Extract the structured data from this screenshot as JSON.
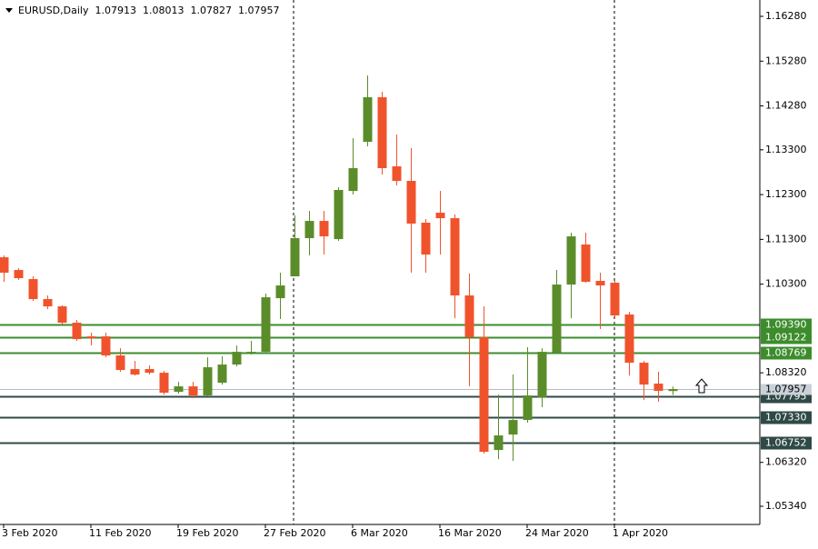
{
  "chart_data": {
    "type": "candlestick",
    "title": "EURUSD,Daily",
    "categories": [
      "3 Feb 2020",
      null,
      null,
      null,
      null,
      null,
      "11 Feb 2020",
      null,
      null,
      null,
      null,
      null,
      "19 Feb 2020",
      null,
      null,
      null,
      null,
      null,
      "27 Feb 2020",
      null,
      null,
      null,
      null,
      null,
      "6 Mar 2020",
      null,
      null,
      null,
      null,
      null,
      "16 Mar 2020",
      null,
      null,
      null,
      null,
      null,
      "24 Mar 2020",
      null,
      null,
      null,
      null,
      null,
      "1 Apr 2020",
      null,
      null,
      null,
      null
    ],
    "series": [
      {
        "up_color": "#5b8c2a",
        "down_color": "#f0532c",
        "open": [
          1.109,
          1.10616,
          1.10413,
          1.09967,
          1.09804,
          1.09439,
          1.09134,
          1.09134,
          1.08708,
          1.08404,
          1.08404,
          1.08322,
          1.07896,
          1.08018,
          1.07815,
          1.08099,
          1.08505,
          1.08769,
          1.08789,
          1.09987,
          1.10474,
          1.11327,
          1.11712,
          1.11306,
          1.12382,
          1.13479,
          1.14473,
          1.1293,
          1.12606,
          1.11672,
          1.11895,
          1.11773,
          1.10048,
          1.09114,
          1.06597,
          1.06942,
          1.07267,
          1.07774,
          1.08769,
          1.10291,
          1.11185,
          1.10373,
          1.10332,
          1.09622,
          1.08546,
          1.08079,
          1.07913
        ],
        "high": [
          1.10941,
          1.10657,
          1.10474,
          1.10048,
          1.09825,
          1.095,
          1.09216,
          1.09216,
          1.0887,
          1.08586,
          1.08485,
          1.08363,
          1.08119,
          1.08119,
          1.08667,
          1.08688,
          1.08931,
          1.09033,
          1.10088,
          1.10555,
          1.11834,
          1.11936,
          1.11936,
          1.12464,
          1.1356,
          1.1496,
          1.14595,
          1.13641,
          1.13336,
          1.11753,
          1.12382,
          1.11855,
          1.10535,
          1.09804,
          1.07835,
          1.08282,
          1.08891,
          1.0887,
          1.10616,
          1.11449,
          1.11449,
          1.10555,
          1.10373,
          1.09682,
          1.08586,
          1.08343,
          1.08013
        ],
        "low": [
          1.10352,
          1.10393,
          1.09926,
          1.09743,
          1.09398,
          1.09033,
          1.08931,
          1.08667,
          1.08343,
          1.08261,
          1.08282,
          1.07835,
          1.07855,
          1.07754,
          1.07795,
          1.08058,
          1.08464,
          1.08728,
          1.08749,
          1.0952,
          1.10474,
          1.10941,
          1.10961,
          1.11266,
          1.12301,
          1.13377,
          1.12748,
          1.12504,
          1.10555,
          1.10555,
          1.10961,
          1.0954,
          1.08018,
          1.06516,
          1.06394,
          1.06353,
          1.07206,
          1.07551,
          1.08749,
          1.0954,
          1.10332,
          1.09297,
          1.0954,
          1.08261,
          1.07713,
          1.07673,
          1.07827
        ],
        "close": [
          1.10555,
          1.10434,
          1.09967,
          1.09804,
          1.09439,
          1.09073,
          1.09094,
          1.08708,
          1.08383,
          1.08282,
          1.08322,
          1.07876,
          1.08018,
          1.07815,
          1.08444,
          1.08505,
          1.08789,
          1.08789,
          1.10007,
          1.10271,
          1.11327,
          1.11712,
          1.11367,
          1.12403,
          1.1289,
          1.14473,
          1.1289,
          1.12606,
          1.11652,
          1.10961,
          1.11773,
          1.10048,
          1.09114,
          1.06556,
          1.06922,
          1.07267,
          1.07815,
          1.08789,
          1.10291,
          1.11367,
          1.10352,
          1.10271,
          1.09601,
          1.08546,
          1.08058,
          1.07916,
          1.07957
        ]
      }
    ],
    "ylim": [
      1.04934,
      1.16645
    ],
    "yticks": [
      {
        "value": 1.1628,
        "label": "1.16280"
      },
      {
        "value": 1.1528,
        "label": "1.15280"
      },
      {
        "value": 1.1428,
        "label": "1.14280"
      },
      {
        "value": 1.133,
        "label": "1.13300"
      },
      {
        "value": 1.123,
        "label": "1.12300"
      },
      {
        "value": 1.113,
        "label": "1.11300"
      },
      {
        "value": 1.103,
        "label": "1.10300"
      },
      {
        "value": 1.0832,
        "label": "1.08320"
      },
      {
        "value": 1.0632,
        "label": "1.06320"
      },
      {
        "value": 1.0534,
        "label": "1.05340"
      }
    ],
    "levels": [
      {
        "value": 1.0939,
        "label": "1.09390",
        "color": "#3c8c2c"
      },
      {
        "value": 1.09122,
        "label": "1.09122",
        "color": "#3c8c2c"
      },
      {
        "value": 1.08769,
        "label": "1.08769",
        "color": "#3c8c2c"
      },
      {
        "value": 1.07795,
        "label": "1.07795",
        "color": "#2f4a46"
      },
      {
        "value": 1.0733,
        "label": "1.07330",
        "color": "#2f4a46"
      },
      {
        "value": 1.06752,
        "label": "1.06752",
        "color": "#2f4a46"
      }
    ],
    "grid": false
  }
}
